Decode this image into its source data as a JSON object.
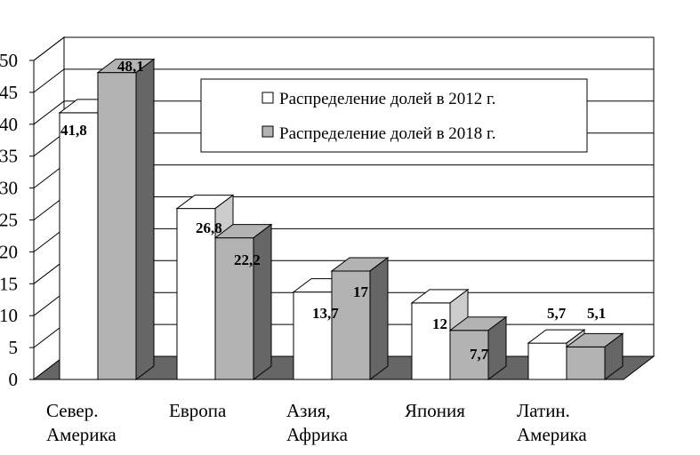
{
  "chart_data": {
    "type": "bar",
    "style": "3d-clustered-column",
    "title": "",
    "xlabel": "",
    "ylabel": "",
    "ylim": [
      0,
      50
    ],
    "yticks": [
      "0",
      "5",
      "10",
      "15",
      "20",
      "25",
      "30",
      "35",
      "40",
      "45",
      "50"
    ],
    "grid": true,
    "legend_position": "top-right",
    "categories": [
      [
        "Север.",
        "Америка"
      ],
      [
        "Европа"
      ],
      [
        "Азия,",
        "Африка"
      ],
      [
        "Япония"
      ],
      [
        "Латин.",
        "Америка"
      ]
    ],
    "series": [
      {
        "name": "Распределение долей в 2012 г.",
        "color": "#ffffff",
        "values": [
          41.8,
          26.8,
          13.7,
          12,
          5.7
        ],
        "labels": [
          "41,8",
          "26,8",
          "13,7",
          "12",
          "5,7"
        ]
      },
      {
        "name": "Распределение долей в 2018 г.",
        "color": "#b3b3b3",
        "values": [
          48.1,
          22.2,
          17,
          7.7,
          5.1
        ],
        "labels": [
          "48,1",
          "22,2",
          "17",
          "7,7",
          "5,1"
        ]
      }
    ]
  }
}
